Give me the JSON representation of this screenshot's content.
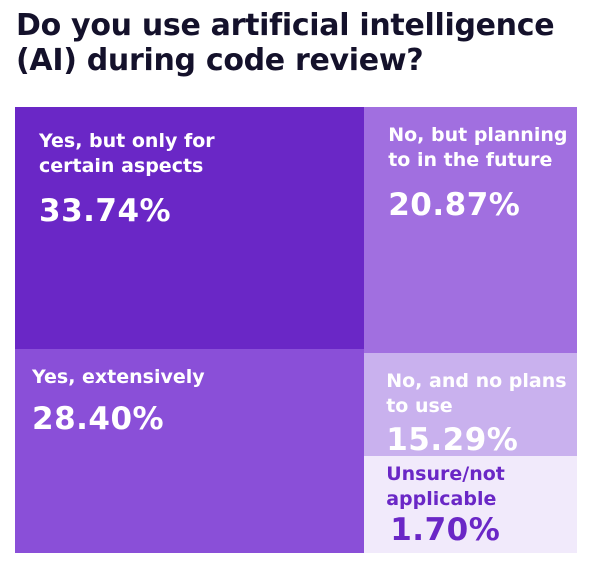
{
  "title_lines": [
    "Do you use artificial intelligence",
    "(AI) during code review?"
  ],
  "chart_data": {
    "type": "treemap",
    "title": "Do you use artificial intelligence (AI) during code review?",
    "categories": [
      "Yes, but only for certain aspects",
      "Yes, extensively",
      "No, but planning to in the future",
      "No, and no plans to use",
      "Unsure/not applicable"
    ],
    "values": [
      33.74,
      28.4,
      20.87,
      15.29,
      1.7
    ],
    "value_labels": [
      "33.74%",
      "28.40%",
      "20.87%",
      "15.29%",
      "1.70%"
    ],
    "label_lines": [
      [
        "Yes, but only for",
        "certain aspects"
      ],
      [
        "Yes, extensively"
      ],
      [
        "No, but planning",
        "to in the future"
      ],
      [
        "No, and no plans",
        "to use"
      ],
      [
        "Unsure/not",
        "applicable"
      ]
    ],
    "colors": [
      "#6a27c6",
      "#8a4fd8",
      "#a16fe0",
      "#c9b1ee",
      "#f1eafb"
    ],
    "text_colors": [
      "#ffffff",
      "#ffffff",
      "#ffffff",
      "#ffffff",
      "#6a27c6"
    ]
  }
}
